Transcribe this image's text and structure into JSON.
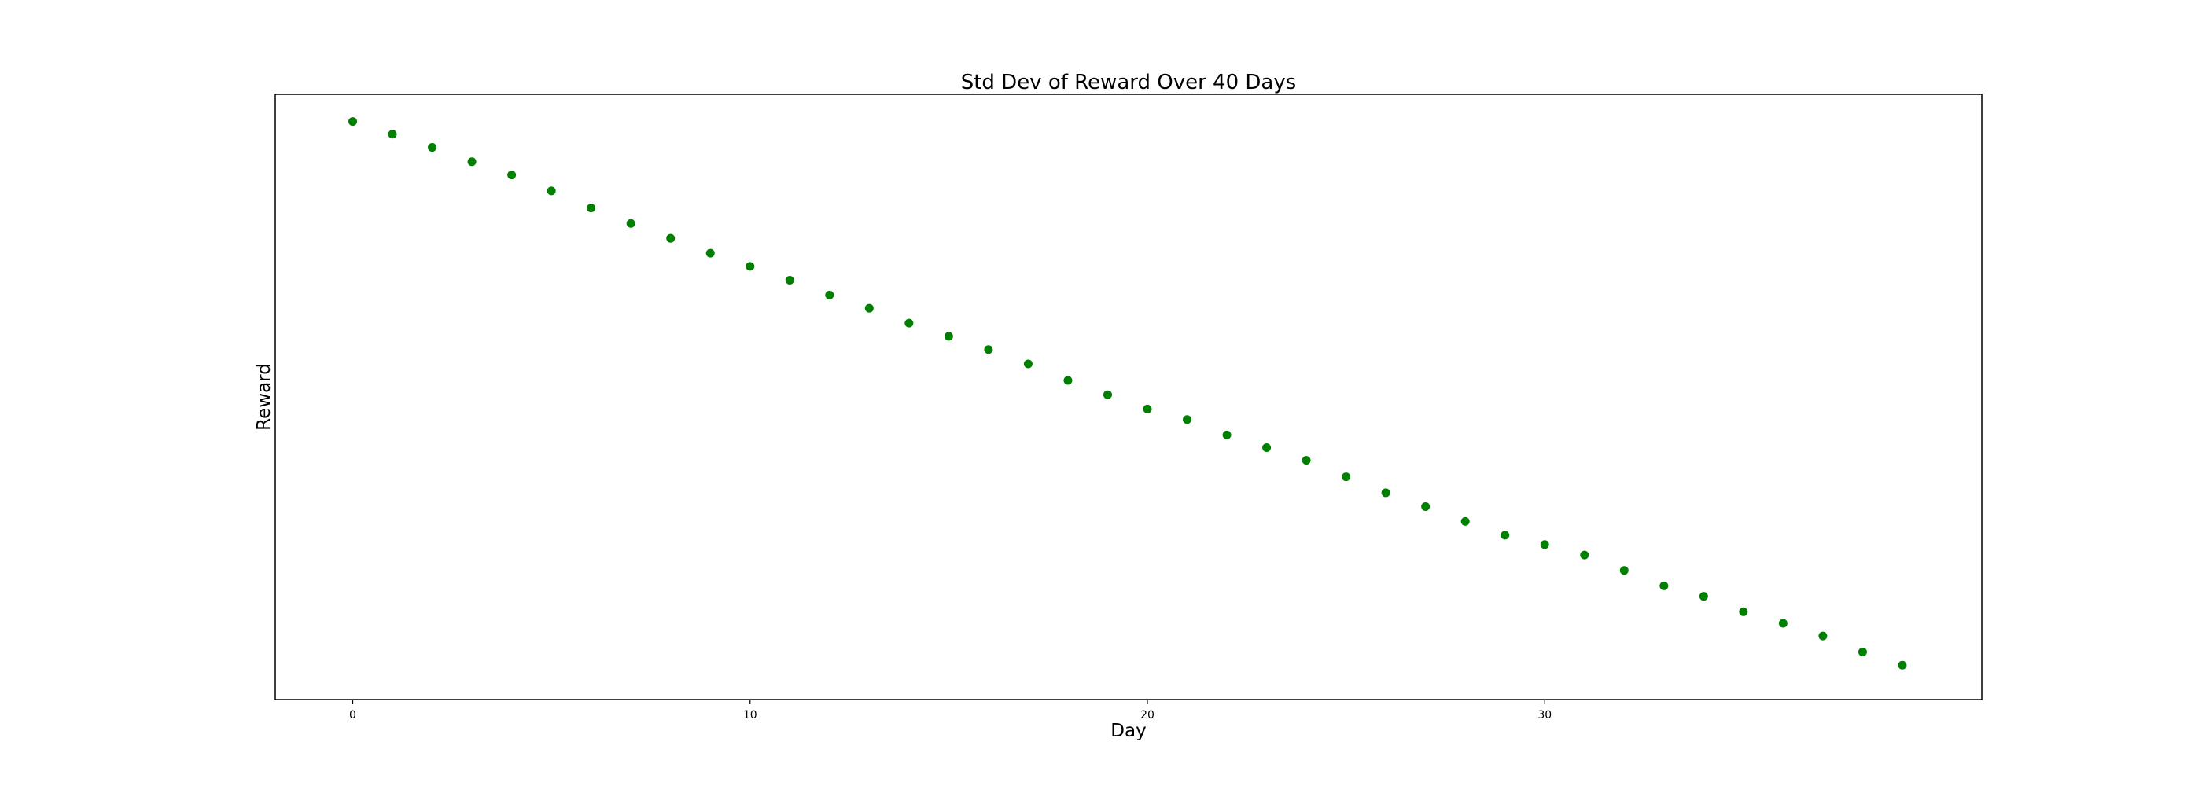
{
  "chart_data": {
    "type": "scatter",
    "title": "Std Dev of Reward Over 40 Days",
    "xlabel": "Day",
    "ylabel": "Reward",
    "x_ticks": [
      0,
      10,
      20,
      30
    ],
    "y_ticks_shown": false,
    "xlim": [
      -1.95,
      41.0
    ],
    "ylim": [
      -0.0494,
      1.0494
    ],
    "grid": false,
    "legend": "none",
    "series": [
      {
        "color": "#008000",
        "marker": "circle",
        "points": [
          {
            "x": 0,
            "y": 1.0
          },
          {
            "x": 1,
            "y": 0.977
          },
          {
            "x": 2,
            "y": 0.953
          },
          {
            "x": 3,
            "y": 0.927
          },
          {
            "x": 4,
            "y": 0.903
          },
          {
            "x": 5,
            "y": 0.874
          },
          {
            "x": 6,
            "y": 0.843
          },
          {
            "x": 7,
            "y": 0.815
          },
          {
            "x": 8,
            "y": 0.788
          },
          {
            "x": 9,
            "y": 0.761
          },
          {
            "x": 10,
            "y": 0.737
          },
          {
            "x": 11,
            "y": 0.712
          },
          {
            "x": 12,
            "y": 0.685
          },
          {
            "x": 13,
            "y": 0.661
          },
          {
            "x": 14,
            "y": 0.634
          },
          {
            "x": 15,
            "y": 0.61
          },
          {
            "x": 16,
            "y": 0.586
          },
          {
            "x": 17,
            "y": 0.56
          },
          {
            "x": 18,
            "y": 0.53
          },
          {
            "x": 19,
            "y": 0.504
          },
          {
            "x": 20,
            "y": 0.478
          },
          {
            "x": 21,
            "y": 0.459
          },
          {
            "x": 22,
            "y": 0.431
          },
          {
            "x": 23,
            "y": 0.408
          },
          {
            "x": 24,
            "y": 0.385
          },
          {
            "x": 25,
            "y": 0.355
          },
          {
            "x": 26,
            "y": 0.326
          },
          {
            "x": 27,
            "y": 0.301
          },
          {
            "x": 28,
            "y": 0.274
          },
          {
            "x": 29,
            "y": 0.249
          },
          {
            "x": 30,
            "y": 0.232
          },
          {
            "x": 31,
            "y": 0.213
          },
          {
            "x": 32,
            "y": 0.185
          },
          {
            "x": 33,
            "y": 0.157
          },
          {
            "x": 34,
            "y": 0.138
          },
          {
            "x": 35,
            "y": 0.11
          },
          {
            "x": 36,
            "y": 0.089
          },
          {
            "x": 37,
            "y": 0.066
          },
          {
            "x": 38,
            "y": 0.037
          },
          {
            "x": 39,
            "y": 0.013
          }
        ]
      }
    ]
  }
}
